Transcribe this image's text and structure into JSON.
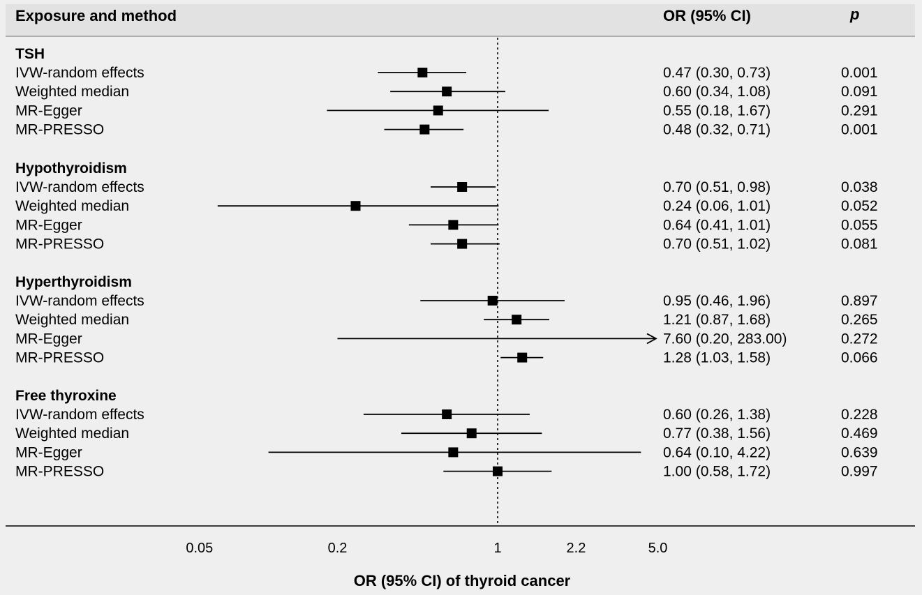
{
  "headers": {
    "exposure_method": "Exposure and method",
    "or_ci": "OR (95% CI)",
    "p": "p"
  },
  "chart_data": {
    "type": "forest",
    "xlabel": "OR (95% CI) of thyroid cancer",
    "x_scale": "log",
    "xticks": [
      0.05,
      0.2,
      1,
      2.2,
      5.0
    ],
    "xtick_labels": [
      "0.05",
      "0.2",
      "1",
      "2.2",
      "5.0"
    ],
    "reference_line": 1,
    "groups": [
      {
        "name": "TSH",
        "rows": [
          {
            "method": "IVW-random effects",
            "or": 0.47,
            "lo": 0.3,
            "hi": 0.73,
            "or_text": "0.47 (0.30, 0.73)",
            "p": "0.001"
          },
          {
            "method": "Weighted median",
            "or": 0.6,
            "lo": 0.34,
            "hi": 1.08,
            "or_text": "0.60 (0.34, 1.08)",
            "p": "0.091"
          },
          {
            "method": "MR-Egger",
            "or": 0.55,
            "lo": 0.18,
            "hi": 1.67,
            "or_text": "0.55 (0.18, 1.67)",
            "p": "0.291"
          },
          {
            "method": "MR-PRESSO",
            "or": 0.48,
            "lo": 0.32,
            "hi": 0.71,
            "or_text": "0.48 (0.32, 0.71)",
            "p": "0.001"
          }
        ]
      },
      {
        "name": "Hypothyroidism",
        "rows": [
          {
            "method": "IVW-random effects",
            "or": 0.7,
            "lo": 0.51,
            "hi": 0.98,
            "or_text": "0.70 (0.51, 0.98)",
            "p": "0.038"
          },
          {
            "method": "Weighted median",
            "or": 0.24,
            "lo": 0.06,
            "hi": 1.01,
            "or_text": "0.24 (0.06, 1.01)",
            "p": "0.052"
          },
          {
            "method": "MR-Egger",
            "or": 0.64,
            "lo": 0.41,
            "hi": 1.01,
            "or_text": "0.64 (0.41, 1.01)",
            "p": "0.055"
          },
          {
            "method": "MR-PRESSO",
            "or": 0.7,
            "lo": 0.51,
            "hi": 1.02,
            "or_text": "0.70 (0.51, 1.02)",
            "p": "0.081"
          }
        ]
      },
      {
        "name": "Hyperthyroidism",
        "rows": [
          {
            "method": "IVW-random effects",
            "or": 0.95,
            "lo": 0.46,
            "hi": 1.96,
            "or_text": "0.95 (0.46, 1.96)",
            "p": "0.897"
          },
          {
            "method": "Weighted median",
            "or": 1.21,
            "lo": 0.87,
            "hi": 1.68,
            "or_text": "1.21 (0.87, 1.68)",
            "p": "0.265"
          },
          {
            "method": "MR-Egger",
            "or": 7.6,
            "lo": 0.2,
            "hi": 283.0,
            "or_text": "7.60 (0.20, 283.00)",
            "p": "0.272",
            "truncated": true
          },
          {
            "method": "MR-PRESSO",
            "or": 1.28,
            "lo": 1.03,
            "hi": 1.58,
            "or_text": "1.28 (1.03, 1.58)",
            "p": "0.066"
          }
        ]
      },
      {
        "name": "Free thyroxine",
        "rows": [
          {
            "method": "IVW-random effects",
            "or": 0.6,
            "lo": 0.26,
            "hi": 1.38,
            "or_text": "0.60 (0.26, 1.38)",
            "p": "0.228"
          },
          {
            "method": "Weighted median",
            "or": 0.77,
            "lo": 0.38,
            "hi": 1.56,
            "or_text": "0.77 (0.38, 1.56)",
            "p": "0.469"
          },
          {
            "method": "MR-Egger",
            "or": 0.64,
            "lo": 0.1,
            "hi": 4.22,
            "or_text": "0.64 (0.10, 4.22)",
            "p": "0.639"
          },
          {
            "method": "MR-PRESSO",
            "or": 1.0,
            "lo": 0.58,
            "hi": 1.72,
            "or_text": "1.00 (0.58, 1.72)",
            "p": "0.997"
          }
        ]
      }
    ]
  },
  "colors": {
    "panel_bg": "#efefef",
    "header_bg": "#e2e2e2",
    "ink": "#000000"
  }
}
